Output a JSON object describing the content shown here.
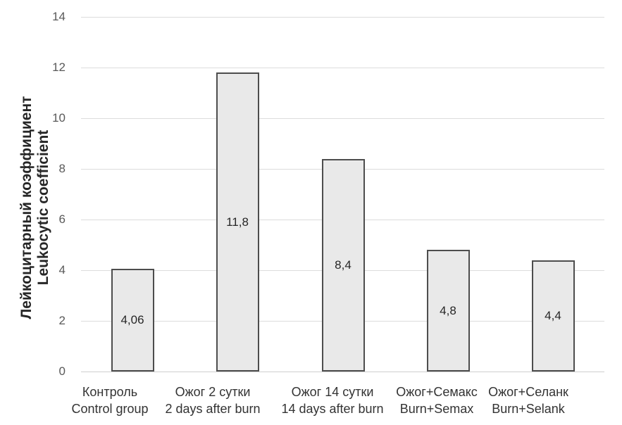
{
  "y_axis_title": {
    "line1": "Лейкоцитарный коэффициент",
    "line2": "Leukocytic coefficient"
  },
  "chart_data": {
    "type": "bar",
    "title": "",
    "xlabel": "",
    "ylabel": "Лейкоцитарный коэффициент / Leukocytic coefficient",
    "ylim": [
      0,
      14
    ],
    "y_ticks": [
      0,
      2,
      4,
      6,
      8,
      10,
      12,
      14
    ],
    "grid": true,
    "legend": null,
    "categories": [
      {
        "ru": "Контроль",
        "en": "Control group"
      },
      {
        "ru": "Ожог 2 сутки",
        "en": "2 days after burn"
      },
      {
        "ru": "Ожог 14 сутки",
        "en": "14 days after burn"
      },
      {
        "ru": "Ожог+Семакс",
        "en": "Burn+Semax"
      },
      {
        "ru": "Ожог+Селанк",
        "en": "Burn+Selank"
      }
    ],
    "values": [
      4.06,
      11.8,
      8.4,
      4.8,
      4.4
    ],
    "value_labels": [
      "4,06",
      "11,8",
      "8,4",
      "4,8",
      "4,4"
    ]
  },
  "colors": {
    "bar_fill": "#e9e9e9",
    "bar_border": "#4d4d4d",
    "gridline": "#dcdcdc",
    "tick_text": "#595959",
    "label_text": "#333333",
    "title_text": "#262626",
    "background": "#ffffff"
  }
}
